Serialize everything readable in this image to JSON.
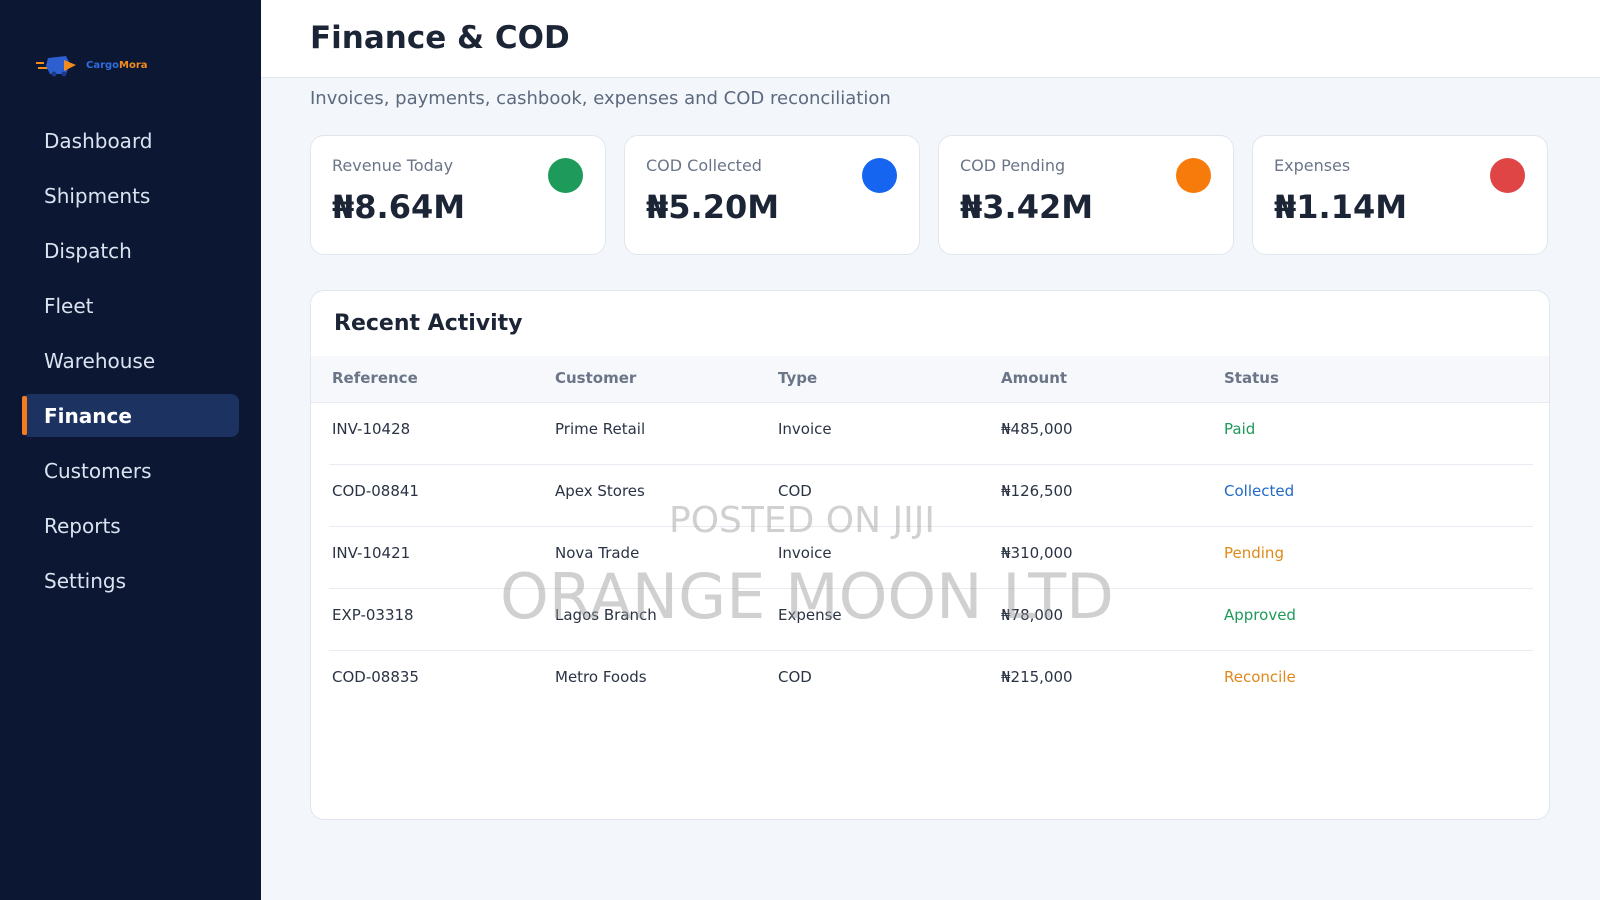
{
  "brand": {
    "name_part1": "Cargo",
    "name_part2": "Mora"
  },
  "sidebar": {
    "items": [
      {
        "label": "Dashboard",
        "active": false
      },
      {
        "label": "Shipments",
        "active": false
      },
      {
        "label": "Dispatch",
        "active": false
      },
      {
        "label": "Fleet",
        "active": false
      },
      {
        "label": "Warehouse",
        "active": false
      },
      {
        "label": "Finance",
        "active": true
      },
      {
        "label": "Customers",
        "active": false
      },
      {
        "label": "Reports",
        "active": false
      },
      {
        "label": "Settings",
        "active": false
      }
    ]
  },
  "header": {
    "title": "Finance & COD",
    "subtitle": "Invoices, payments, cashbook, expenses and COD reconciliation"
  },
  "stats": [
    {
      "label": "Revenue Today",
      "value": "₦8.64M",
      "color": "#1e9a5a"
    },
    {
      "label": "COD Collected",
      "value": "₦5.20M",
      "color": "#1565f0"
    },
    {
      "label": "COD Pending",
      "value": "₦3.42M",
      "color": "#f77b0a"
    },
    {
      "label": "Expenses",
      "value": "₦1.14M",
      "color": "#e04545"
    }
  ],
  "activity": {
    "title": "Recent Activity",
    "columns": [
      "Reference",
      "Customer",
      "Type",
      "Amount",
      "Status"
    ],
    "rows": [
      {
        "reference": "INV-10428",
        "customer": "Prime Retail",
        "type": "Invoice",
        "amount": "₦485,000",
        "status": "Paid",
        "status_color": "#1e9a5a"
      },
      {
        "reference": "COD-08841",
        "customer": "Apex Stores",
        "type": "COD",
        "amount": "₦126,500",
        "status": "Collected",
        "status_color": "#2169c4"
      },
      {
        "reference": "INV-10421",
        "customer": "Nova Trade",
        "type": "Invoice",
        "amount": "₦310,000",
        "status": "Pending",
        "status_color": "#e0891a"
      },
      {
        "reference": "EXP-03318",
        "customer": "Lagos Branch",
        "type": "Expense",
        "amount": "₦78,000",
        "status": "Approved",
        "status_color": "#1e9a5a"
      },
      {
        "reference": "COD-08835",
        "customer": "Metro Foods",
        "type": "COD",
        "amount": "₦215,000",
        "status": "Reconcile",
        "status_color": "#e0891a"
      }
    ]
  },
  "watermark": {
    "line1": "POSTED ON JIJI",
    "line2": "ORANGE MOON LTD"
  }
}
